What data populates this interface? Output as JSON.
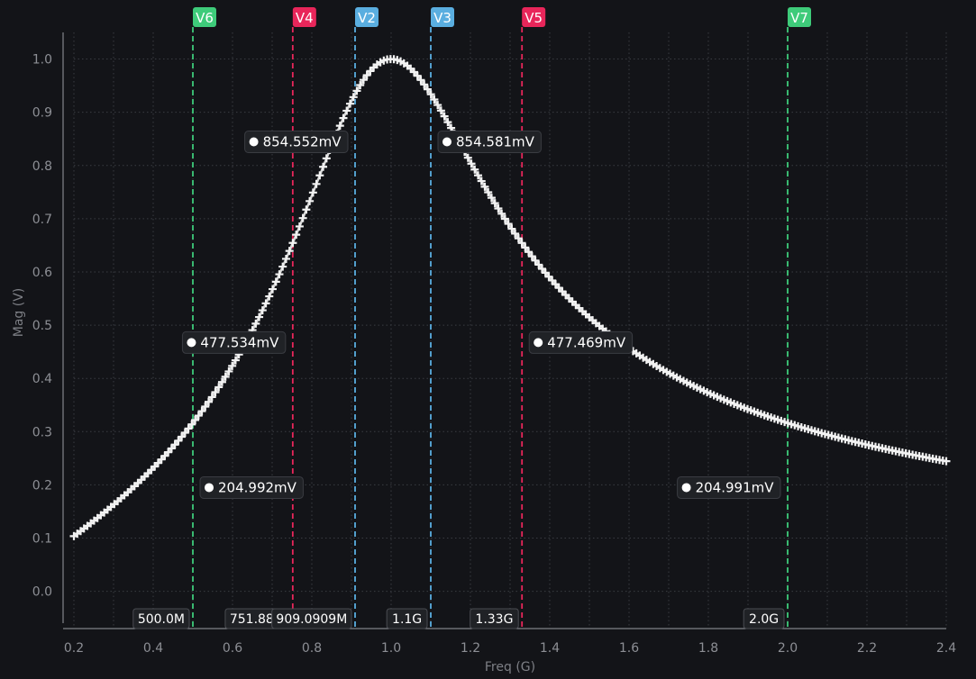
{
  "chart_data": {
    "type": "line",
    "xlabel": "Freq  (G)",
    "ylabel": "Mag (V)",
    "xlim": [
      0.2,
      2.4
    ],
    "ylim": [
      -0.07,
      1.05
    ],
    "x_ticks": [
      "0.2",
      "0.4",
      "0.6",
      "0.8",
      "1.0",
      "1.2",
      "1.4",
      "1.6",
      "1.8",
      "2.0",
      "2.2",
      "2.4"
    ],
    "y_ticks": [
      "0.0",
      "0.1",
      "0.2",
      "0.3",
      "0.4",
      "0.5",
      "0.6",
      "0.7",
      "0.8",
      "0.9",
      "1.0"
    ],
    "grid": true,
    "series": [
      {
        "color": "#e8e8e8",
        "marker": "plus",
        "f0": 1.0,
        "q": 2.0,
        "x_range": [
          0.2,
          2.4
        ],
        "points": 260
      }
    ],
    "markers": [
      {
        "label": "V6",
        "x": 0.5,
        "color": "#3ecb7a",
        "freq_label": "500.0M"
      },
      {
        "label": "V4",
        "x": 0.7519,
        "color": "#e8265a",
        "freq_label": "751.88M"
      },
      {
        "label": "V2",
        "x": 0.9091,
        "color": "#5aaee0",
        "freq_label": "909.0909M"
      },
      {
        "label": "V3",
        "x": 1.1,
        "color": "#5aaee0",
        "freq_label": "1.1G"
      },
      {
        "label": "V5",
        "x": 1.33,
        "color": "#e8265a",
        "freq_label": "1.33G"
      },
      {
        "label": "V7",
        "x": 2.0,
        "color": "#3ecb7a",
        "freq_label": "2.0G"
      }
    ],
    "annotations": [
      {
        "text": "854.552mV",
        "x": 0.9091,
        "y": 0.8546,
        "side": "left"
      },
      {
        "text": "854.581mV",
        "x": 1.1,
        "y": 0.8546,
        "side": "right"
      },
      {
        "text": "477.534mV",
        "x": 0.7519,
        "y": 0.4775,
        "side": "left"
      },
      {
        "text": "477.469mV",
        "x": 1.33,
        "y": 0.4775,
        "side": "right"
      },
      {
        "text": "204.992mV",
        "x": 0.5,
        "y": 0.205,
        "side": "right"
      },
      {
        "text": "204.991mV",
        "x": 2.0,
        "y": 0.205,
        "side": "left"
      }
    ]
  }
}
